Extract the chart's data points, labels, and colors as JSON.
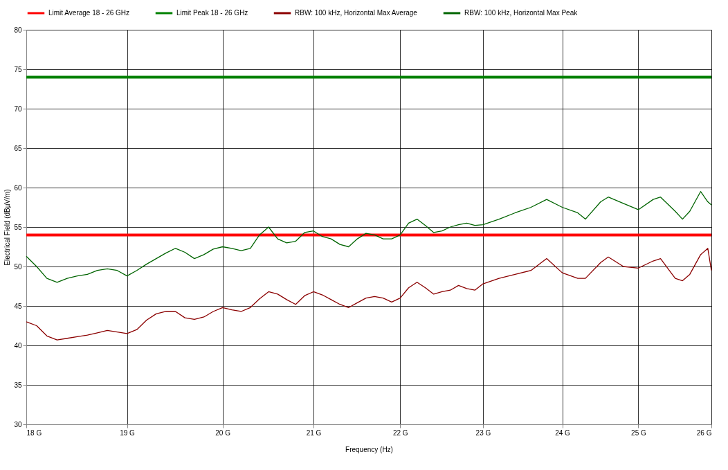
{
  "chart_data": {
    "type": "line",
    "xlabel": "Frequency (Hz)",
    "ylabel": "Electrical Field (dBµV/m)",
    "log": "x",
    "grid": true,
    "legend": "top",
    "line_style": "solid",
    "marker": "none",
    "xlim": [
      18,
      26
    ],
    "ylim": [
      30,
      80
    ],
    "xticks": [
      {
        "value": 18,
        "label": "18 G"
      },
      {
        "value": 19,
        "label": "19 G"
      },
      {
        "value": 20,
        "label": "20 G"
      },
      {
        "value": 21,
        "label": "21 G"
      },
      {
        "value": 22,
        "label": "22 G"
      },
      {
        "value": 23,
        "label": "23 G"
      },
      {
        "value": 24,
        "label": "24 G"
      },
      {
        "value": 25,
        "label": "25 G"
      },
      {
        "value": 26,
        "label": "26 G"
      }
    ],
    "yticks": [
      30,
      35,
      40,
      45,
      50,
      55,
      60,
      65,
      70,
      75,
      80
    ],
    "ref_lines": [
      {
        "axis": "y",
        "value": 54,
        "label": "Limit Average 18 - 26 GHz",
        "color": "#ff0000"
      },
      {
        "axis": "y",
        "value": 74,
        "label": "Limit Peak 18 - 26 GHz",
        "color": "#008000"
      }
    ],
    "x": [
      18.0,
      18.1,
      18.2,
      18.3,
      18.4,
      18.5,
      18.6,
      18.7,
      18.8,
      18.9,
      19.0,
      19.1,
      19.2,
      19.3,
      19.4,
      19.5,
      19.6,
      19.7,
      19.8,
      19.9,
      20.0,
      20.1,
      20.2,
      20.3,
      20.4,
      20.5,
      20.6,
      20.7,
      20.8,
      20.9,
      21.0,
      21.1,
      21.2,
      21.3,
      21.4,
      21.5,
      21.6,
      21.7,
      21.8,
      21.9,
      22.0,
      22.1,
      22.2,
      22.3,
      22.4,
      22.5,
      22.6,
      22.7,
      22.8,
      22.9,
      23.0,
      23.2,
      23.4,
      23.6,
      23.8,
      24.0,
      24.2,
      24.3,
      24.5,
      24.6,
      24.8,
      25.0,
      25.2,
      25.3,
      25.5,
      25.6,
      25.7,
      25.85,
      25.95,
      26.0
    ],
    "series": [
      {
        "name": "RBW: 100 kHz, Horizontal Max Average",
        "color": "#8b0000",
        "values": [
          43.0,
          42.5,
          41.2,
          40.7,
          40.9,
          41.1,
          41.3,
          41.6,
          41.9,
          41.7,
          41.5,
          42.0,
          43.2,
          44.0,
          44.3,
          44.3,
          43.5,
          43.3,
          43.6,
          44.3,
          44.8,
          44.5,
          44.3,
          44.8,
          45.9,
          46.8,
          46.5,
          45.8,
          45.2,
          46.3,
          46.8,
          46.4,
          45.8,
          45.2,
          44.8,
          45.4,
          46.0,
          46.2,
          46.0,
          45.5,
          46.0,
          47.3,
          48.0,
          47.3,
          46.5,
          46.8,
          47.0,
          47.6,
          47.2,
          47.0,
          47.8,
          48.5,
          49.0,
          49.5,
          51.0,
          49.2,
          48.5,
          48.5,
          50.5,
          51.2,
          50.0,
          49.8,
          50.7,
          51.0,
          48.5,
          48.2,
          49.0,
          51.5,
          52.3,
          49.5
        ]
      },
      {
        "name": "RBW: 100 kHz, Horizontal Max Peak",
        "color": "#006400",
        "values": [
          51.3,
          50.0,
          48.5,
          48.0,
          48.5,
          48.8,
          49.0,
          49.5,
          49.7,
          49.5,
          48.8,
          49.5,
          50.3,
          51.0,
          51.7,
          52.3,
          51.8,
          51.0,
          51.5,
          52.2,
          52.5,
          52.3,
          52.0,
          52.3,
          54.0,
          55.0,
          53.5,
          53.0,
          53.2,
          54.3,
          54.5,
          53.8,
          53.5,
          52.8,
          52.5,
          53.5,
          54.2,
          54.0,
          53.5,
          53.5,
          54.0,
          55.5,
          56.0,
          55.2,
          54.3,
          54.5,
          55.0,
          55.3,
          55.5,
          55.2,
          55.3,
          56.0,
          56.8,
          57.5,
          58.5,
          57.5,
          56.8,
          56.0,
          58.2,
          58.8,
          58.0,
          57.2,
          58.5,
          58.8,
          57.0,
          56.0,
          57.0,
          59.5,
          58.2,
          57.8
        ]
      }
    ]
  }
}
